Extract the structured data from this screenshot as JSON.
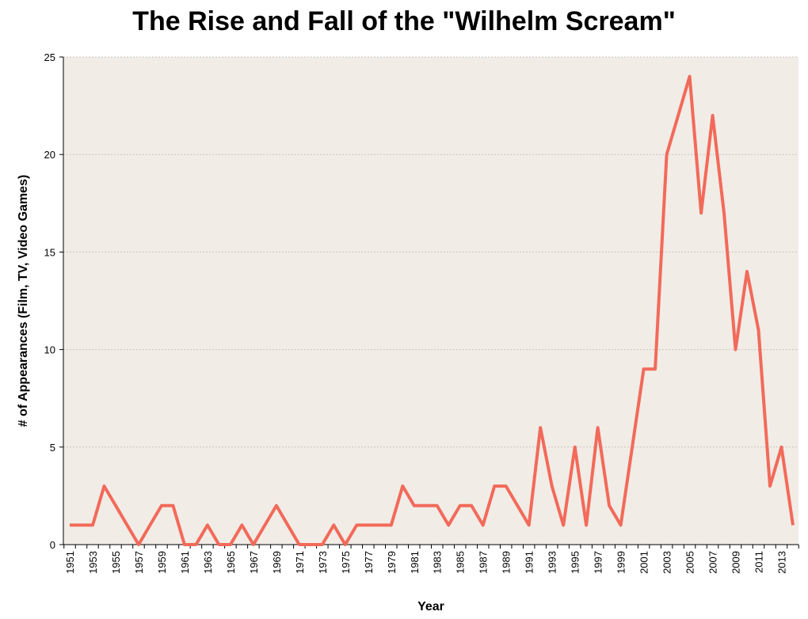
{
  "chart_data": {
    "type": "line",
    "title": "The Rise and Fall of the \"Wilhelm Scream\"",
    "xlabel": "Year",
    "ylabel": "# of  Appearances (Film, TV, Video Games)",
    "ylim": [
      0,
      25
    ],
    "y_ticks": [
      0,
      5,
      10,
      15,
      20,
      25
    ],
    "x_tick_labels": [
      "1951",
      "1953",
      "1955",
      "1957",
      "1959",
      "1961",
      "1963",
      "1965",
      "1967",
      "1969",
      "1971",
      "1973",
      "1975",
      "1977",
      "1979",
      "1981",
      "1983",
      "1985",
      "1987",
      "1989",
      "1991",
      "1993",
      "1995",
      "1997",
      "1999",
      "2001",
      "2003",
      "2005",
      "2007",
      "2009",
      "2011",
      "2013"
    ],
    "grid": "horizontal dotted",
    "line_color": "#f26a5a",
    "plot_background": "#f1ece6",
    "series": [
      {
        "x": [
          1951,
          1952,
          1953,
          1954,
          1955,
          1956,
          1957,
          1958,
          1959,
          1960,
          1961,
          1962,
          1963,
          1964,
          1965,
          1966,
          1967,
          1968,
          1969,
          1970,
          1971,
          1972,
          1973,
          1974,
          1975,
          1976,
          1977,
          1978,
          1979,
          1980,
          1981,
          1982,
          1983,
          1984,
          1985,
          1986,
          1987,
          1988,
          1989,
          1990,
          1991,
          1992,
          1993,
          1994,
          1995,
          1996,
          1997,
          1998,
          1999,
          2000,
          2001,
          2002,
          2003,
          2004,
          2005,
          2006,
          2007,
          2008,
          2009,
          2010,
          2011,
          2012,
          2013,
          2014
        ],
        "values": [
          1,
          1,
          1,
          3,
          2,
          1,
          0,
          1,
          2,
          2,
          0,
          0,
          1,
          0,
          0,
          1,
          0,
          1,
          2,
          1,
          0,
          0,
          0,
          1,
          0,
          1,
          1,
          1,
          1,
          3,
          2,
          2,
          2,
          1,
          2,
          2,
          1,
          3,
          3,
          2,
          1,
          6,
          3,
          1,
          5,
          1,
          6,
          2,
          1,
          5,
          9,
          9,
          20,
          22,
          24,
          17,
          22,
          17,
          10,
          14,
          11,
          3,
          5,
          1
        ]
      }
    ]
  }
}
